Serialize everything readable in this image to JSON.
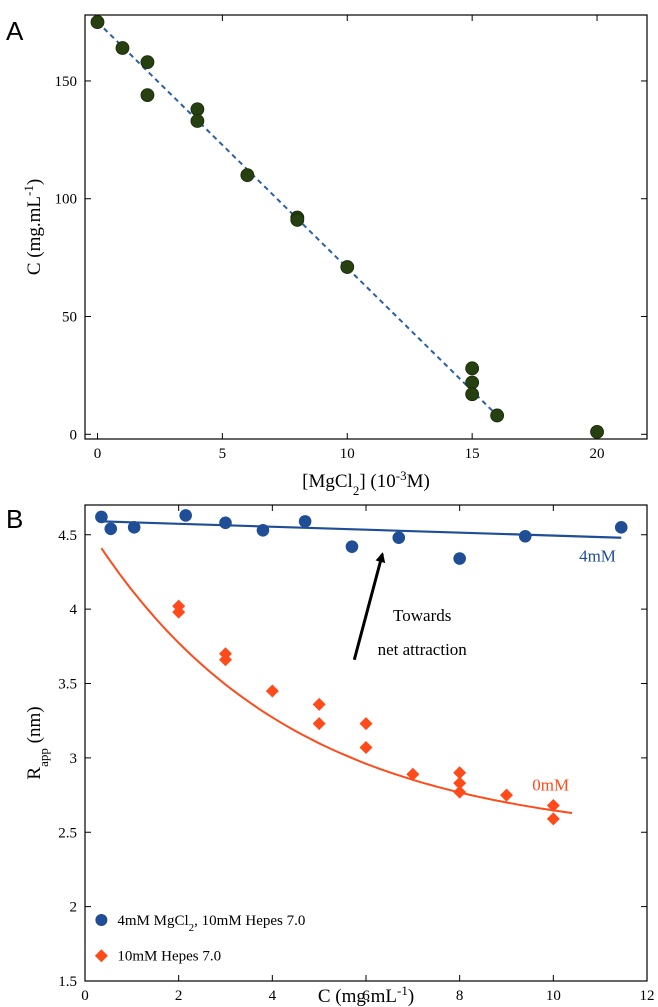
{
  "chart_data": [
    {
      "panel": "A",
      "type": "scatter",
      "xlabel": "[MgCl2] (10-3M)",
      "xlabel_parts": {
        "base": "[MgCl",
        "sub": "2",
        "mid": "] (10",
        "sup": "-3",
        "end": "M)"
      },
      "ylabel": "C (mg.mL-1)",
      "ylabel_parts": {
        "base": "C (mg.mL",
        "sup": "-1",
        "end": ")"
      },
      "xlim": [
        -0.5,
        22
      ],
      "ylim": [
        -2,
        178
      ],
      "xticks": [
        0,
        5,
        10,
        15,
        20
      ],
      "yticks": [
        0,
        50,
        100,
        150
      ],
      "grid": false,
      "marker_color": "#27400f",
      "fit_color": "#2b5fa6",
      "points": [
        {
          "x": 0,
          "y": 175
        },
        {
          "x": 1,
          "y": 164
        },
        {
          "x": 2,
          "y": 158
        },
        {
          "x": 2,
          "y": 144
        },
        {
          "x": 4,
          "y": 138
        },
        {
          "x": 4,
          "y": 133
        },
        {
          "x": 6,
          "y": 110
        },
        {
          "x": 8,
          "y": 92
        },
        {
          "x": 8,
          "y": 91
        },
        {
          "x": 10,
          "y": 71
        },
        {
          "x": 15,
          "y": 28
        },
        {
          "x": 15,
          "y": 22
        },
        {
          "x": 15,
          "y": 17
        },
        {
          "x": 16,
          "y": 8
        },
        {
          "x": 20,
          "y": 1
        }
      ],
      "fit": {
        "style": "dashed",
        "x": [
          0,
          16
        ],
        "y": [
          175,
          8
        ]
      }
    },
    {
      "panel": "B",
      "type": "scatter",
      "xlabel": "C (mg.mL-1)",
      "xlabel_parts": {
        "base": "C (mg.mL",
        "sup": "-1",
        "end": ")"
      },
      "ylabel": "Rapp (nm)",
      "ylabel_parts": {
        "base": "R",
        "sub": "app",
        "end": " (nm)"
      },
      "xlim": [
        0,
        12
      ],
      "ylim": [
        1.5,
        4.7
      ],
      "xticks": [
        0,
        2,
        4,
        6,
        8,
        10,
        12
      ],
      "yticks": [
        1.5,
        2,
        2.5,
        3,
        3.5,
        4,
        4.5
      ],
      "ytick_labels": [
        "1.5",
        "2",
        "2.5",
        "3",
        "3.5",
        "4",
        "4.5"
      ],
      "grid": false,
      "legend_position": "bottom-left",
      "series": [
        {
          "name": "4mM MgCl2, 10mM Hepes 7.0",
          "name_parts": {
            "base": "4mM MgCl",
            "sub": "2",
            "end": ", 10mM Hepes 7.0"
          },
          "marker": "circle",
          "color": "#1f4e96",
          "x": [
            0.35,
            0.55,
            1.05,
            2.15,
            3.0,
            3.8,
            4.7,
            5.7,
            6.7,
            8.0,
            9.4,
            11.45
          ],
          "y": [
            4.62,
            4.54,
            4.55,
            4.63,
            4.58,
            4.53,
            4.59,
            4.42,
            4.48,
            4.34,
            4.49,
            4.55
          ],
          "fit": {
            "x0": 0.35,
            "y0": 4.59,
            "x1": 11.45,
            "y1": 4.48
          }
        },
        {
          "name": "10mM Hepes 7.0",
          "marker": "diamond",
          "color": "#ff4a1a",
          "x": [
            2,
            2,
            3,
            3,
            4,
            5,
            5,
            6,
            6,
            7,
            8,
            8,
            8,
            9,
            10,
            10
          ],
          "y": [
            4.02,
            3.98,
            3.7,
            3.66,
            3.45,
            3.36,
            3.23,
            3.23,
            3.07,
            2.89,
            2.9,
            2.83,
            2.77,
            2.75,
            2.68,
            2.59
          ],
          "fit": {
            "type": "exponential",
            "x0": 0.35,
            "x1": 10.4,
            "a": 2.13,
            "b": 2.45,
            "k": 0.238
          }
        }
      ],
      "annotations": {
        "line_4mM": "4mM",
        "line_0mM": "0mM",
        "arrow_text_1": "Towards",
        "arrow_text_2": "net attraction",
        "arrow": {
          "x0": 5.75,
          "y0": 3.66,
          "x1": 6.35,
          "y1": 4.37
        }
      }
    }
  ]
}
